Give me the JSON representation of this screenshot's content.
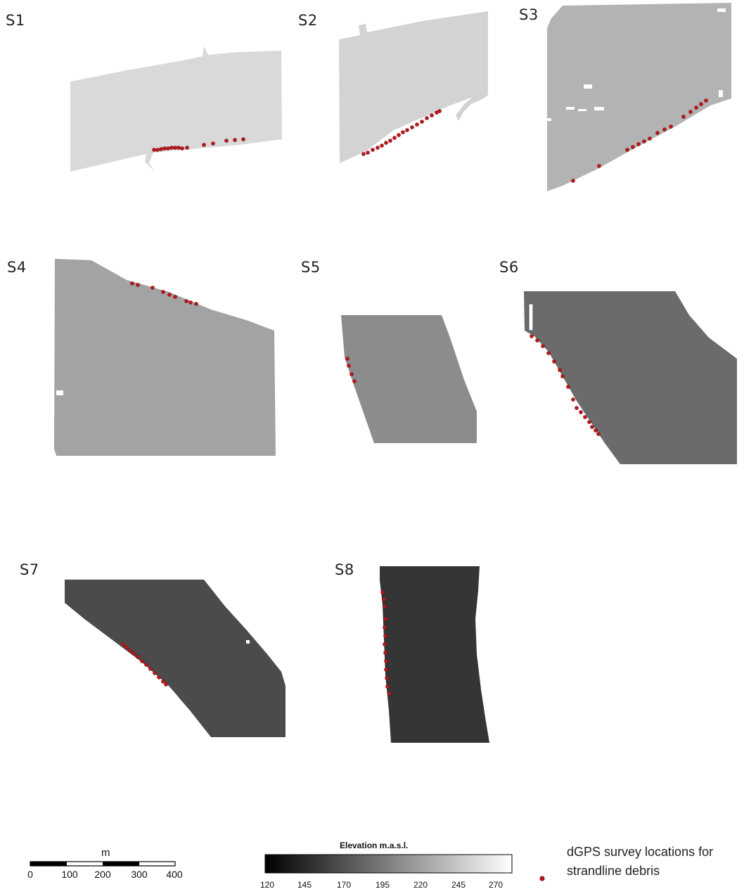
{
  "panels": [
    {
      "label": "S1",
      "fill": "#d9d9d9"
    },
    {
      "label": "S2",
      "fill": "#d3d3d3"
    },
    {
      "label": "S3",
      "fill": "#b3b3b3"
    },
    {
      "label": "S4",
      "fill": "#a3a3a3"
    },
    {
      "label": "S5",
      "fill": "#8c8c8c"
    },
    {
      "label": "S6",
      "fill": "#6b6b6b"
    },
    {
      "label": "S7",
      "fill": "#4b4b4b"
    },
    {
      "label": "S8",
      "fill": "#353535"
    }
  ],
  "colors": {
    "survey_point": "#c0151a",
    "survey_point_dark": "#7a0d10"
  },
  "scalebar": {
    "unit": "m",
    "ticks": [
      "0",
      "100",
      "200",
      "300",
      "400"
    ]
  },
  "elevation_legend": {
    "title": "Elevation m.a.s.l.",
    "ticks": [
      "120",
      "145",
      "170",
      "195",
      "220",
      "245",
      "270"
    ]
  },
  "points_legend": {
    "line1": "dGPS survey locations for",
    "line2": "strandline debris"
  }
}
